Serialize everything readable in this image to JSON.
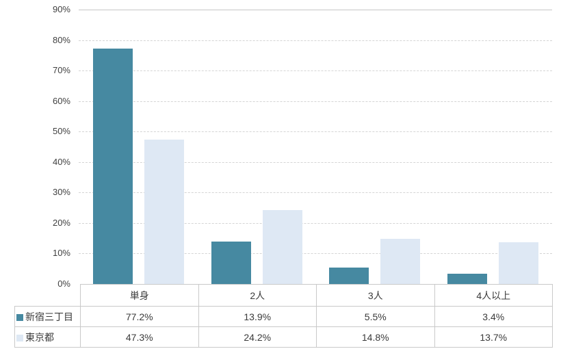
{
  "chart_data": {
    "type": "bar",
    "title": "",
    "xlabel": "",
    "ylabel": "",
    "categories": [
      "単身",
      "2人",
      "3人",
      "4人以上"
    ],
    "series": [
      {
        "name": "新宿三丁目",
        "color": "#4689A1",
        "values": [
          77.2,
          13.9,
          5.5,
          3.4
        ]
      },
      {
        "name": "東京都",
        "color": "#DEE8F4",
        "values": [
          47.3,
          24.2,
          14.8,
          13.7
        ]
      }
    ],
    "ylim": [
      0,
      90
    ],
    "ytick_step": 10,
    "ytick_labels": [
      "0%",
      "10%",
      "20%",
      "30%",
      "40%",
      "50%",
      "60%",
      "70%",
      "80%",
      "90%"
    ],
    "grid": true,
    "gridline_color": "#d4d4d4",
    "axis_text_color": "#404040",
    "legend_position": "data-table-left-column",
    "data_table": {
      "rows": [
        {
          "label": "新宿三丁目",
          "values": [
            "77.2%",
            "13.9%",
            "5.5%",
            "3.4%"
          ]
        },
        {
          "label": "東京都",
          "values": [
            "47.3%",
            "24.2%",
            "14.8%",
            "13.7%"
          ]
        }
      ]
    }
  }
}
